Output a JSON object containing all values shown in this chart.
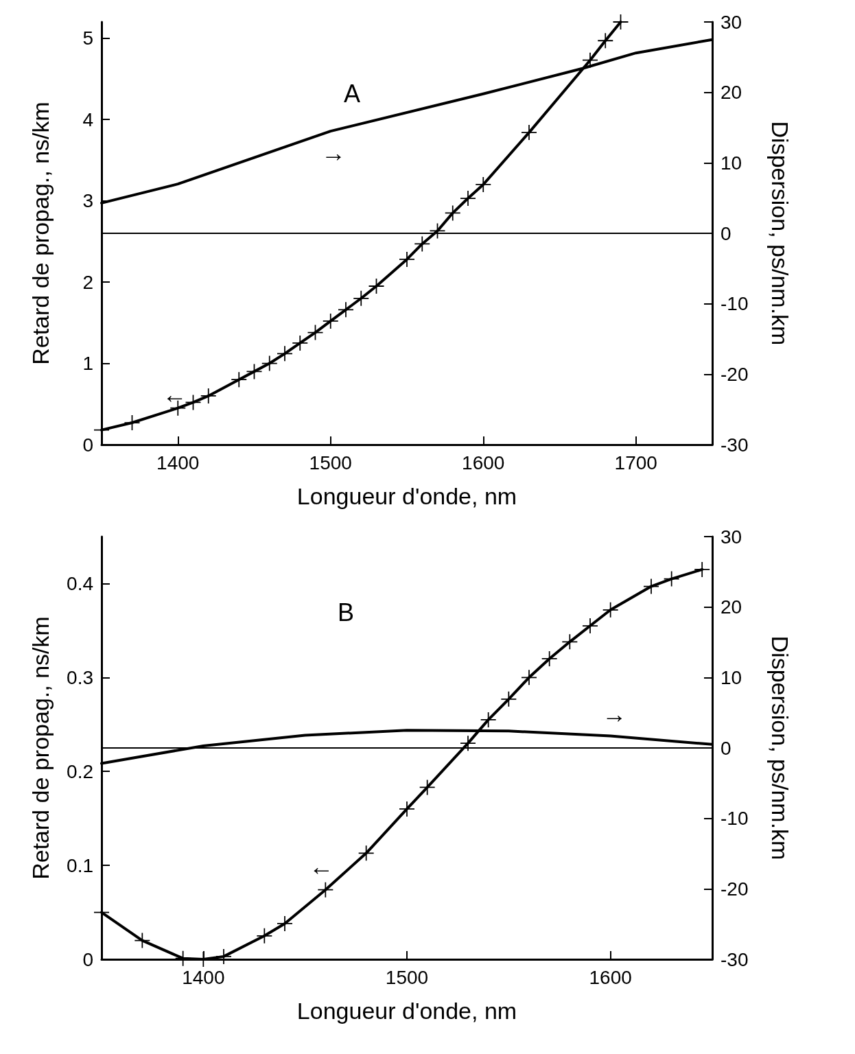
{
  "chart_data": [
    {
      "type": "line",
      "xlabel": "Longueur d'onde, nm",
      "ylabel": "Retard de propag., ns/km",
      "y2label": "Dispersion, ps/nm.km",
      "xlim": [
        1350,
        1750
      ],
      "xticks": [
        1400,
        1500,
        1600,
        1700
      ],
      "ylim": [
        0,
        5.2
      ],
      "yticks": [
        0,
        1,
        2,
        3,
        4,
        5
      ],
      "y2lim": [
        -30,
        30
      ],
      "y2ticks": [
        -30,
        -20,
        -10,
        0,
        10,
        20,
        30
      ],
      "grid": false,
      "series": [
        {
          "color": "#000000",
          "marker": "cross",
          "x": [
            1350,
            1370,
            1400,
            1410,
            1420,
            1440,
            1450,
            1460,
            1470,
            1480,
            1490,
            1500,
            1510,
            1520,
            1530,
            1550,
            1560,
            1570,
            1580,
            1590,
            1600,
            1630,
            1670,
            1680,
            1690
          ],
          "values": [
            0.18,
            0.27,
            0.45,
            0.52,
            0.6,
            0.8,
            0.9,
            1.0,
            1.12,
            1.25,
            1.38,
            1.52,
            1.66,
            1.8,
            1.95,
            2.28,
            2.47,
            2.63,
            2.85,
            3.03,
            3.2,
            3.84,
            4.73,
            4.97,
            5.2
          ]
        },
        {
          "color": "#000000",
          "marker": "none",
          "axis": "y2",
          "x": [
            1350,
            1400,
            1500,
            1600,
            1665,
            1700,
            1750
          ],
          "values": [
            4.3,
            7,
            14.5,
            19.8,
            23.4,
            25.6,
            27.5
          ]
        }
      ],
      "ref_lines": [
        {
          "axis": "y2",
          "value": 0
        }
      ],
      "annotations": [
        "A",
        "→",
        "←"
      ]
    },
    {
      "type": "line",
      "xlabel": "Longueur d'onde, nm",
      "ylabel": "Retard de propag., ns/km",
      "y2label": "Dispersion, ps/nm.km",
      "xlim": [
        1350,
        1650
      ],
      "xticks": [
        1400,
        1500,
        1600
      ],
      "ylim": [
        0,
        0.45
      ],
      "yticks": [
        0,
        0.1,
        0.2,
        0.3,
        0.4
      ],
      "y2lim": [
        -30,
        30
      ],
      "y2ticks": [
        -30,
        -20,
        -10,
        0,
        10,
        20,
        30
      ],
      "grid": false,
      "series": [
        {
          "color": "#000000",
          "marker": "cross",
          "x": [
            1350,
            1370,
            1390,
            1400,
            1410,
            1430,
            1440,
            1460,
            1480,
            1500,
            1510,
            1530,
            1540,
            1550,
            1560,
            1570,
            1580,
            1590,
            1600,
            1620,
            1630,
            1645
          ],
          "values": [
            0.05,
            0.02,
            0.001,
            0.0,
            0.003,
            0.025,
            0.038,
            0.074,
            0.113,
            0.16,
            0.183,
            0.23,
            0.255,
            0.277,
            0.3,
            0.32,
            0.338,
            0.355,
            0.372,
            0.397,
            0.405,
            0.415
          ]
        },
        {
          "color": "#000000",
          "marker": "none",
          "axis": "y2",
          "x": [
            1350,
            1400,
            1450,
            1500,
            1550,
            1600,
            1650
          ],
          "values": [
            -2.2,
            0.3,
            1.8,
            2.5,
            2.4,
            1.7,
            0.5
          ]
        }
      ],
      "ref_lines": [
        {
          "axis": "y2",
          "value": 0
        }
      ],
      "annotations": [
        "B",
        "→",
        "←"
      ]
    }
  ]
}
